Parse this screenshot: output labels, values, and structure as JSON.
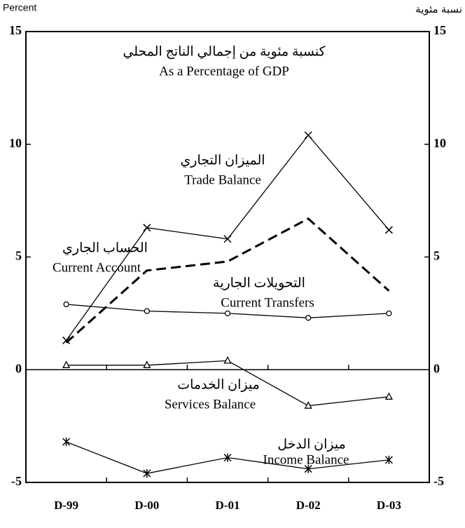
{
  "chart_data": {
    "type": "line",
    "title": "كنسبة مئوية من إجمالي الناتج المحلي",
    "subtitle": "As a Percentage of GDP",
    "ylabel": "Percent",
    "y2label": "نسبة مئوية",
    "categories": [
      "D-99",
      "D-00",
      "D-01",
      "D-02",
      "D-03"
    ],
    "ylim": [
      -5,
      15
    ],
    "yticks": [
      -5,
      0,
      5,
      10,
      15
    ],
    "y2lim": [
      -5,
      15
    ],
    "y2ticks": [
      -5,
      0,
      5,
      10,
      15
    ],
    "series": [
      {
        "name": "Trade Balance",
        "name_ar": "الميزان التجاري",
        "color": "#000000",
        "marker": "x",
        "dashed": false,
        "values": [
          1.3,
          6.3,
          5.8,
          10.4,
          6.2
        ]
      },
      {
        "name": "Current Account",
        "name_ar": "الحساب الجاري",
        "color": "#000000",
        "marker": "none",
        "dashed": true,
        "values": [
          1.2,
          4.4,
          4.8,
          6.7,
          3.5
        ]
      },
      {
        "name": "Current Transfers",
        "name_ar": "التحويلات الجارية",
        "color": "#000000",
        "marker": "circle",
        "dashed": false,
        "values": [
          2.9,
          2.6,
          2.5,
          2.3,
          2.5
        ]
      },
      {
        "name": "Services Balance",
        "name_ar": "ميزان الخدمات",
        "color": "#000000",
        "marker": "triangle",
        "dashed": false,
        "values": [
          0.2,
          0.2,
          0.4,
          -1.6,
          -1.2
        ]
      },
      {
        "name": "Income Balance",
        "name_ar": "ميزان الدخل",
        "color": "#000000",
        "marker": "asterisk",
        "dashed": false,
        "values": [
          -3.2,
          -4.6,
          -3.9,
          -4.4,
          -4.0
        ]
      }
    ]
  }
}
